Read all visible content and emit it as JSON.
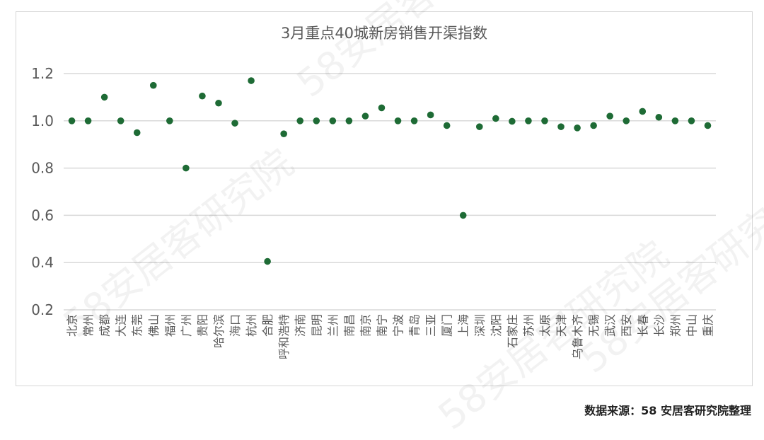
{
  "chart_data": {
    "type": "scatter",
    "title": "3月重点40城新房销售开渠指数",
    "categories": [
      "北京",
      "常州",
      "成都",
      "大连",
      "东莞",
      "佛山",
      "福州",
      "广州",
      "贵阳",
      "哈尔滨",
      "海口",
      "杭州",
      "合肥",
      "呼和浩特",
      "济南",
      "昆明",
      "兰州",
      "南昌",
      "南京",
      "南宁",
      "宁波",
      "青岛",
      "三亚",
      "厦门",
      "上海",
      "深圳",
      "沈阳",
      "石家庄",
      "苏州",
      "太原",
      "天津",
      "乌鲁木齐",
      "无锡",
      "武汉",
      "西安",
      "长春",
      "长沙",
      "郑州",
      "中山",
      "重庆"
    ],
    "values": [
      1.0,
      1.0,
      1.1,
      1.0,
      0.95,
      1.15,
      1.0,
      0.8,
      1.105,
      1.075,
      0.99,
      1.17,
      0.405,
      0.945,
      1.0,
      1.0,
      1.0,
      1.0,
      1.02,
      1.055,
      1.0,
      1.0,
      1.025,
      0.98,
      0.6,
      0.975,
      1.01,
      0.998,
      1.0,
      1.0,
      0.975,
      0.97,
      0.98,
      1.02,
      1.0,
      1.04,
      1.015,
      1.0,
      1.0,
      0.98
    ],
    "yticks": [
      "0.2",
      "0.4",
      "0.6",
      "0.8",
      "1.0",
      "1.2"
    ],
    "ylim": [
      0.2,
      1.2
    ],
    "grid": true,
    "marker_color": "#1e6b35",
    "grid_color": "#d9d9d9"
  },
  "footer": {
    "source": "数据来源：58 安居客研究院整理"
  },
  "watermarks": [
    "58安居客研究院",
    "58安居客研究院",
    "58安居客研究院",
    "58安居客研究院"
  ]
}
